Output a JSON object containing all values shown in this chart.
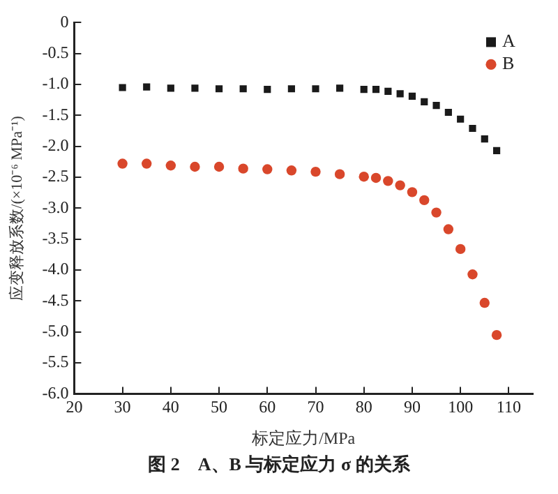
{
  "chart_data": {
    "type": "scatter",
    "xlabel": "标定应力/MPa",
    "ylabel": "应变释放系数/(×10⁻⁶ MPa⁻¹)",
    "annotations": [
      "图 2　A、B 与标定应力 σ 的关系"
    ],
    "xlim": [
      20,
      115
    ],
    "xticks": [
      20,
      30,
      40,
      50,
      60,
      70,
      80,
      90,
      100,
      110
    ],
    "ylim": [
      -6,
      0
    ],
    "yticks": [
      {
        "value": -6,
        "label": "-6.0"
      },
      {
        "value": -5.5,
        "label": "-5.5"
      },
      {
        "value": -5,
        "label": "-5.0"
      },
      {
        "value": -4.5,
        "label": "-4.5"
      },
      {
        "value": -4,
        "label": "-4.0"
      },
      {
        "value": -3.5,
        "label": "-3.5"
      },
      {
        "value": -3,
        "label": "-3.0"
      },
      {
        "value": -2.5,
        "label": "-2.5"
      },
      {
        "value": -2,
        "label": "-2.0"
      },
      {
        "value": -1.5,
        "label": "-1.5"
      },
      {
        "value": -1,
        "label": "-1.0"
      },
      {
        "value": -0.5,
        "label": "-0.5"
      },
      {
        "value": 0,
        "label": "0"
      }
    ],
    "x": [
      30,
      35,
      40,
      45,
      50,
      55,
      60,
      65,
      70,
      75,
      80,
      82.5,
      85,
      87.5,
      90,
      92.5,
      95,
      97.5,
      100,
      102.5,
      105,
      107.5
    ],
    "grid": false,
    "legend": "top right",
    "series": [
      {
        "name": "A",
        "color": "#1a1a1a",
        "marker": "square",
        "values": [
          -1.05,
          -1.04,
          -1.06,
          -1.06,
          -1.07,
          -1.07,
          -1.08,
          -1.07,
          -1.07,
          -1.06,
          -1.08,
          -1.08,
          -1.11,
          -1.15,
          -1.19,
          -1.28,
          -1.34,
          -1.45,
          -1.56,
          -1.71,
          -1.88,
          -2.07
        ]
      },
      {
        "name": "B",
        "color": "#d9472b",
        "marker": "circle",
        "values": [
          -2.28,
          -2.28,
          -2.31,
          -2.33,
          -2.33,
          -2.36,
          -2.37,
          -2.39,
          -2.41,
          -2.45,
          -2.49,
          -2.51,
          -2.56,
          -2.63,
          -2.74,
          -2.87,
          -3.07,
          -3.34,
          -3.66,
          -4.07,
          -4.53,
          -5.05
        ]
      }
    ]
  }
}
